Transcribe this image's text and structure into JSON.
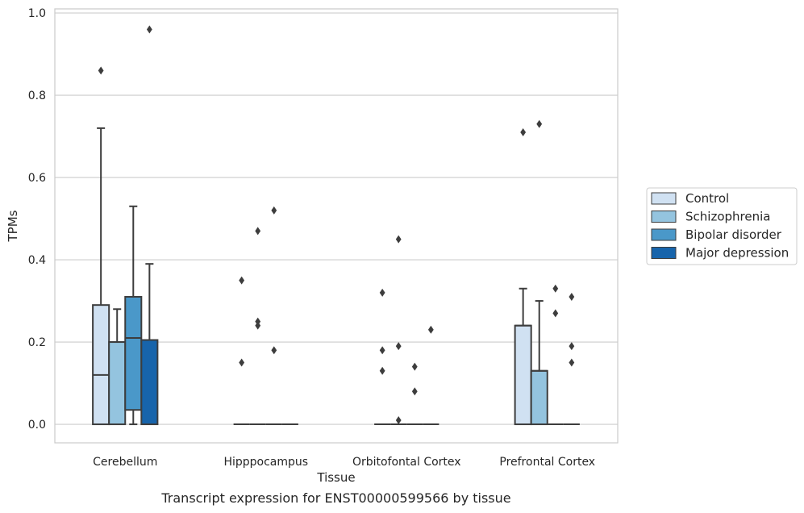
{
  "chart_data": {
    "type": "box",
    "title": "",
    "caption": "Transcript expression for ENST00000599566 by tissue",
    "xlabel": "Tissue",
    "ylabel": "TPMs",
    "ylim": [
      -0.045,
      1.01
    ],
    "yticks": [
      "0.0",
      "0.2",
      "0.4",
      "0.6",
      "0.8",
      "1.0"
    ],
    "ytick_values": [
      0.0,
      0.2,
      0.4,
      0.6,
      0.8,
      1.0
    ],
    "grid": true,
    "legend_position": "right",
    "categories": [
      "Cerebellum",
      "Hipppocampus",
      "Orbitofontal Cortex",
      "Prefrontal Cortex"
    ],
    "series": [
      {
        "name": "Control",
        "color": "#d0e1f2",
        "boxes": [
          {
            "q1": 0.0,
            "median": 0.12,
            "q3": 0.29,
            "whisker_low": 0.0,
            "whisker_high": 0.72,
            "outliers": [
              0.86
            ]
          },
          {
            "q1": 0.0,
            "median": 0.0,
            "q3": 0.0,
            "whisker_low": 0.0,
            "whisker_high": 0.0,
            "outliers": [
              0.35,
              0.15
            ]
          },
          {
            "q1": 0.0,
            "median": 0.0,
            "q3": 0.0,
            "whisker_low": 0.0,
            "whisker_high": 0.0,
            "outliers": [
              0.32,
              0.18,
              0.13
            ]
          },
          {
            "q1": 0.0,
            "median": 0.24,
            "q3": 0.24,
            "whisker_low": 0.0,
            "whisker_high": 0.33,
            "outliers": [
              0.71
            ]
          }
        ]
      },
      {
        "name": "Schizophrenia",
        "color": "#94c4df",
        "boxes": [
          {
            "q1": 0.0,
            "median": 0.2,
            "q3": 0.2,
            "whisker_low": 0.0,
            "whisker_high": 0.28,
            "outliers": []
          },
          {
            "q1": 0.0,
            "median": 0.0,
            "q3": 0.0,
            "whisker_low": 0.0,
            "whisker_high": 0.0,
            "outliers": [
              0.47,
              0.25,
              0.24
            ]
          },
          {
            "q1": 0.0,
            "median": 0.0,
            "q3": 0.0,
            "whisker_low": 0.0,
            "whisker_high": 0.0,
            "outliers": [
              0.45,
              0.19,
              0.01
            ]
          },
          {
            "q1": 0.0,
            "median": 0.13,
            "q3": 0.13,
            "whisker_low": 0.0,
            "whisker_high": 0.3,
            "outliers": [
              0.73
            ]
          }
        ]
      },
      {
        "name": "Bipolar disorder",
        "color": "#4a98c9",
        "boxes": [
          {
            "q1": 0.035,
            "median": 0.21,
            "q3": 0.31,
            "whisker_low": 0.0,
            "whisker_high": 0.53,
            "outliers": []
          },
          {
            "q1": 0.0,
            "median": 0.0,
            "q3": 0.0,
            "whisker_low": 0.0,
            "whisker_high": 0.0,
            "outliers": [
              0.52,
              0.18
            ]
          },
          {
            "q1": 0.0,
            "median": 0.0,
            "q3": 0.0,
            "whisker_low": 0.0,
            "whisker_high": 0.0,
            "outliers": [
              0.14,
              0.08
            ]
          },
          {
            "q1": 0.0,
            "median": 0.0,
            "q3": 0.0,
            "whisker_low": 0.0,
            "whisker_high": 0.0,
            "outliers": [
              0.33,
              0.27
            ]
          }
        ]
      },
      {
        "name": "Major depression",
        "color": "#1764ab",
        "boxes": [
          {
            "q1": 0.0,
            "median": 0.205,
            "q3": 0.205,
            "whisker_low": 0.0,
            "whisker_high": 0.39,
            "outliers": [
              0.96
            ]
          },
          {
            "q1": 0.0,
            "median": 0.0,
            "q3": 0.0,
            "whisker_low": 0.0,
            "whisker_high": 0.0,
            "outliers": []
          },
          {
            "q1": 0.0,
            "median": 0.0,
            "q3": 0.0,
            "whisker_low": 0.0,
            "whisker_high": 0.0,
            "outliers": [
              0.23
            ]
          },
          {
            "q1": 0.0,
            "median": 0.0,
            "q3": 0.0,
            "whisker_low": 0.0,
            "whisker_high": 0.0,
            "outliers": [
              0.31,
              0.19,
              0.15
            ]
          }
        ]
      }
    ]
  }
}
